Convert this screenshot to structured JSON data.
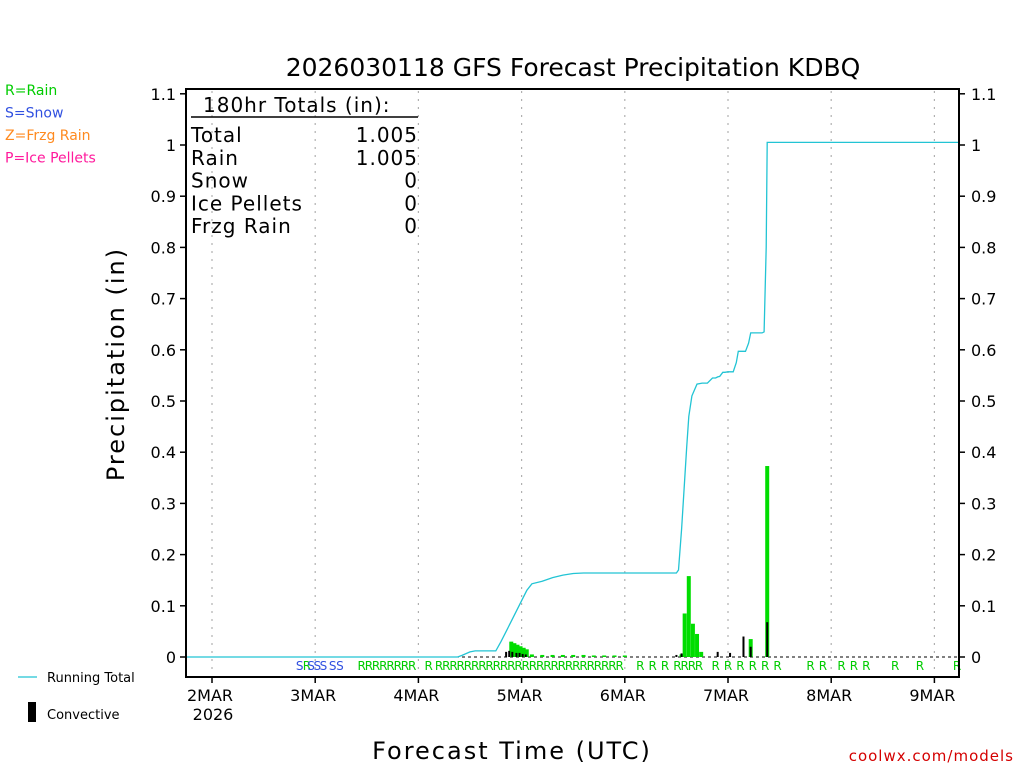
{
  "chart_data": {
    "type": "bar+line",
    "title": "2026030118 GFS Forecast Precipitation KDBQ",
    "ylabel": "Precipitation (in)",
    "xlabel": "Forecast Time (UTC)",
    "ylim": [
      0,
      1.1
    ],
    "y_ticks": [
      0,
      0.1,
      0.2,
      0.3,
      0.4,
      0.5,
      0.6,
      0.7,
      0.8,
      0.9,
      1,
      1.1
    ],
    "y_tick_labels": [
      "0",
      "0.1",
      "0.2",
      "0.3",
      "0.4",
      "0.5",
      "0.6",
      "0.7",
      "0.8",
      "0.9",
      "1",
      "1.1"
    ],
    "x_range_days": [
      -0.25,
      7.25
    ],
    "x_ticks": [
      {
        "day": 0,
        "label": "2MAR",
        "sublabel": "2026"
      },
      {
        "day": 1,
        "label": "3MAR"
      },
      {
        "day": 2,
        "label": "4MAR"
      },
      {
        "day": 3,
        "label": "5MAR"
      },
      {
        "day": 4,
        "label": "6MAR"
      },
      {
        "day": 5,
        "label": "7MAR"
      },
      {
        "day": 6,
        "label": "8MAR"
      },
      {
        "day": 7,
        "label": "9MAR"
      }
    ],
    "totals_box": {
      "header": "180hr Totals (in):",
      "rows": [
        {
          "label": "Total",
          "value": "1.005"
        },
        {
          "label": "Rain",
          "value": "1.005"
        },
        {
          "label": "Snow",
          "value": "0"
        },
        {
          "label": "Ice Pellets",
          "value": "0"
        },
        {
          "label": "Frzg Rain",
          "value": "0"
        }
      ]
    },
    "precip_type_legend": [
      {
        "text": "R=Rain",
        "color": "#00cc00"
      },
      {
        "text": "S=Snow",
        "color": "#3050e0"
      },
      {
        "text": "Z=Frzg Rain",
        "color": "#ff8a1f"
      },
      {
        "text": "P=Ice Pellets",
        "color": "#ff1a9c"
      }
    ],
    "series_legend": {
      "running_total": "Running Total",
      "convective": "Convective"
    },
    "colors": {
      "rain_bar": "#00dd00",
      "convective": "#000000",
      "running_total": "#22c4d4",
      "grid": "#b0b0b0",
      "credit": "#d40000"
    },
    "running_total": {
      "x": [
        -0.25,
        2.38,
        2.42,
        2.5,
        2.55,
        2.75,
        2.8,
        2.9,
        3.0,
        3.05,
        3.1,
        3.2,
        3.3,
        3.4,
        3.5,
        3.6,
        3.8,
        4.0,
        4.2,
        4.5,
        4.52,
        4.55,
        4.6,
        4.62,
        4.65,
        4.7,
        4.75,
        4.8,
        4.85,
        4.88,
        4.9,
        4.92,
        4.95,
        4.97,
        5.0,
        5.05,
        5.08,
        5.1,
        5.12,
        5.17,
        5.2,
        5.22,
        5.25,
        5.28,
        5.3,
        5.33,
        5.35,
        5.37,
        5.38,
        5.4,
        7.25
      ],
      "y": [
        0,
        0,
        0.003,
        0.01,
        0.012,
        0.012,
        0.03,
        0.07,
        0.11,
        0.13,
        0.143,
        0.148,
        0.155,
        0.16,
        0.163,
        0.164,
        0.164,
        0.164,
        0.164,
        0.164,
        0.17,
        0.25,
        0.41,
        0.47,
        0.51,
        0.533,
        0.535,
        0.535,
        0.545,
        0.545,
        0.547,
        0.548,
        0.556,
        0.556,
        0.557,
        0.557,
        0.575,
        0.597,
        0.597,
        0.597,
        0.613,
        0.633,
        0.633,
        0.633,
        0.633,
        0.633,
        0.635,
        0.8,
        1.005,
        1.005,
        1.005
      ]
    },
    "rain_bars": [
      {
        "x": 2.9,
        "v": 0.03
      },
      {
        "x": 2.93,
        "v": 0.027
      },
      {
        "x": 2.96,
        "v": 0.024
      },
      {
        "x": 2.99,
        "v": 0.021
      },
      {
        "x": 3.02,
        "v": 0.018
      },
      {
        "x": 3.05,
        "v": 0.015
      },
      {
        "x": 3.1,
        "v": 0.005
      },
      {
        "x": 3.2,
        "v": 0.004
      },
      {
        "x": 3.3,
        "v": 0.004
      },
      {
        "x": 3.4,
        "v": 0.004
      },
      {
        "x": 3.5,
        "v": 0.004
      },
      {
        "x": 3.6,
        "v": 0.004
      },
      {
        "x": 3.7,
        "v": 0.003
      },
      {
        "x": 3.8,
        "v": 0.003
      },
      {
        "x": 3.9,
        "v": 0.003
      },
      {
        "x": 4.0,
        "v": 0.003
      },
      {
        "x": 4.55,
        "v": 0.005
      },
      {
        "x": 4.58,
        "v": 0.085
      },
      {
        "x": 4.62,
        "v": 0.158
      },
      {
        "x": 4.66,
        "v": 0.065
      },
      {
        "x": 4.7,
        "v": 0.045
      },
      {
        "x": 4.74,
        "v": 0.01
      },
      {
        "x": 5.22,
        "v": 0.035
      },
      {
        "x": 5.38,
        "v": 0.373
      }
    ],
    "convective_bars": [
      {
        "x": 2.85,
        "v": 0.01
      },
      {
        "x": 2.88,
        "v": 0.012
      },
      {
        "x": 2.91,
        "v": 0.01
      },
      {
        "x": 2.95,
        "v": 0.008
      },
      {
        "x": 2.98,
        "v": 0.008
      },
      {
        "x": 3.01,
        "v": 0.006
      },
      {
        "x": 3.04,
        "v": 0.005
      },
      {
        "x": 4.5,
        "v": 0.004
      },
      {
        "x": 4.55,
        "v": 0.007
      },
      {
        "x": 4.9,
        "v": 0.01
      },
      {
        "x": 5.02,
        "v": 0.008
      },
      {
        "x": 5.15,
        "v": 0.04
      },
      {
        "x": 5.22,
        "v": 0.02
      },
      {
        "x": 5.38,
        "v": 0.068
      }
    ],
    "precip_type_markers": [
      {
        "x": 0.85,
        "t": "S"
      },
      {
        "x": 0.92,
        "t": "R"
      },
      {
        "x": 0.96,
        "t": "S"
      },
      {
        "x": 1.02,
        "t": "S"
      },
      {
        "x": 1.08,
        "t": "S"
      },
      {
        "x": 1.17,
        "t": "S"
      },
      {
        "x": 1.24,
        "t": "S"
      },
      {
        "x": 1.45,
        "t": "R"
      },
      {
        "x": 1.52,
        "t": "R"
      },
      {
        "x": 1.59,
        "t": "R"
      },
      {
        "x": 1.66,
        "t": "R"
      },
      {
        "x": 1.73,
        "t": "R"
      },
      {
        "x": 1.8,
        "t": "R"
      },
      {
        "x": 1.87,
        "t": "R"
      },
      {
        "x": 1.94,
        "t": "R"
      },
      {
        "x": 2.1,
        "t": "R"
      },
      {
        "x": 2.2,
        "t": "R"
      },
      {
        "x": 2.27,
        "t": "R"
      },
      {
        "x": 2.34,
        "t": "R"
      },
      {
        "x": 2.41,
        "t": "R"
      },
      {
        "x": 2.48,
        "t": "R"
      },
      {
        "x": 2.55,
        "t": "R"
      },
      {
        "x": 2.62,
        "t": "R"
      },
      {
        "x": 2.69,
        "t": "R"
      },
      {
        "x": 2.76,
        "t": "R"
      },
      {
        "x": 2.83,
        "t": "R"
      },
      {
        "x": 2.9,
        "t": "R"
      },
      {
        "x": 2.97,
        "t": "R"
      },
      {
        "x": 3.04,
        "t": "R"
      },
      {
        "x": 3.11,
        "t": "R"
      },
      {
        "x": 3.18,
        "t": "R"
      },
      {
        "x": 3.25,
        "t": "R"
      },
      {
        "x": 3.32,
        "t": "R"
      },
      {
        "x": 3.39,
        "t": "R"
      },
      {
        "x": 3.46,
        "t": "R"
      },
      {
        "x": 3.53,
        "t": "R"
      },
      {
        "x": 3.6,
        "t": "R"
      },
      {
        "x": 3.67,
        "t": "R"
      },
      {
        "x": 3.74,
        "t": "R"
      },
      {
        "x": 3.81,
        "t": "R"
      },
      {
        "x": 3.88,
        "t": "R"
      },
      {
        "x": 3.95,
        "t": "R"
      },
      {
        "x": 4.15,
        "t": "R"
      },
      {
        "x": 4.27,
        "t": "R"
      },
      {
        "x": 4.39,
        "t": "R"
      },
      {
        "x": 4.51,
        "t": "R"
      },
      {
        "x": 4.58,
        "t": "R"
      },
      {
        "x": 4.65,
        "t": "R"
      },
      {
        "x": 4.72,
        "t": "R"
      },
      {
        "x": 4.88,
        "t": "R"
      },
      {
        "x": 5.0,
        "t": "R"
      },
      {
        "x": 5.12,
        "t": "R"
      },
      {
        "x": 5.24,
        "t": "R"
      },
      {
        "x": 5.36,
        "t": "R"
      },
      {
        "x": 5.48,
        "t": "R"
      },
      {
        "x": 5.8,
        "t": "R"
      },
      {
        "x": 5.92,
        "t": "R"
      },
      {
        "x": 6.1,
        "t": "R"
      },
      {
        "x": 6.22,
        "t": "R"
      },
      {
        "x": 6.34,
        "t": "R"
      },
      {
        "x": 6.62,
        "t": "R"
      },
      {
        "x": 6.86,
        "t": "R"
      },
      {
        "x": 7.22,
        "t": "R"
      }
    ]
  },
  "credit": "coolwx.com/models"
}
